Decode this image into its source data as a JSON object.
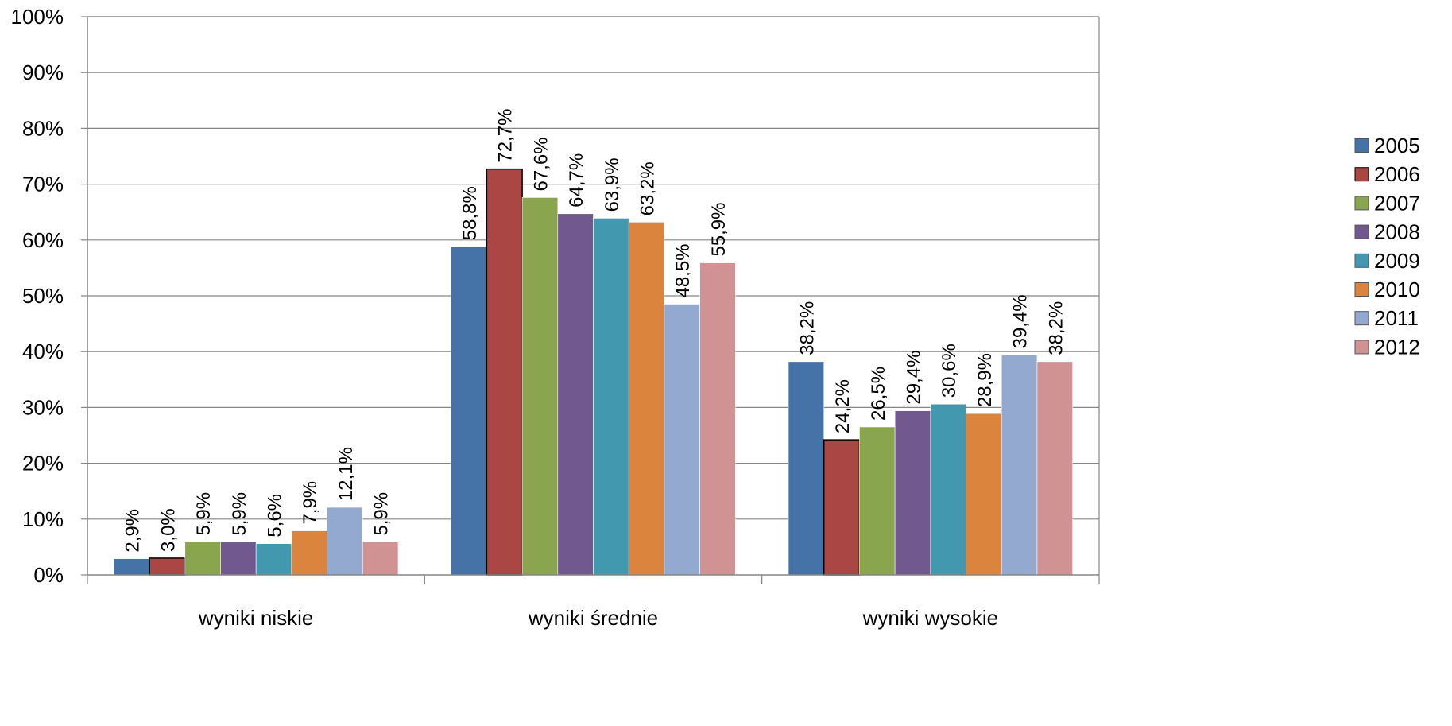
{
  "chart_data": {
    "type": "bar",
    "categories": [
      "wyniki niskie",
      "wyniki średnie",
      "wyniki wysokie"
    ],
    "series": [
      {
        "name": "2005",
        "color": "#4572A7",
        "values": [
          2.9,
          58.8,
          38.2
        ],
        "labels": [
          "2,9%",
          "58,8%",
          "38,2%"
        ]
      },
      {
        "name": "2006",
        "color": "#AA4643",
        "values": [
          3.0,
          72.7,
          24.2
        ],
        "labels": [
          "3,0%",
          "72,7%",
          "24,2%"
        ]
      },
      {
        "name": "2007",
        "color": "#89A54E",
        "values": [
          5.9,
          67.6,
          26.5
        ],
        "labels": [
          "5,9%",
          "67,6%",
          "26,5%"
        ]
      },
      {
        "name": "2008",
        "color": "#71588F",
        "values": [
          5.9,
          64.7,
          29.4
        ],
        "labels": [
          "5,9%",
          "64,7%",
          "29,4%"
        ]
      },
      {
        "name": "2009",
        "color": "#4198AF",
        "values": [
          5.6,
          63.9,
          30.6
        ],
        "labels": [
          "5,6%",
          "63,9%",
          "30,6%"
        ]
      },
      {
        "name": "2010",
        "color": "#DB843D",
        "values": [
          7.9,
          63.2,
          28.9
        ],
        "labels": [
          "7,9%",
          "63,2%",
          "28,9%"
        ]
      },
      {
        "name": "2011",
        "color": "#93A9CF",
        "values": [
          12.1,
          48.5,
          39.4
        ],
        "labels": [
          "12,1%",
          "48,5%",
          "39,4%"
        ]
      },
      {
        "name": "2012",
        "color": "#D09293",
        "values": [
          5.9,
          55.9,
          38.2
        ],
        "labels": [
          "5,9%",
          "55,9%",
          "38,2%"
        ]
      }
    ],
    "yticks": [
      "0%",
      "10%",
      "20%",
      "30%",
      "40%",
      "50%",
      "60%",
      "70%",
      "80%",
      "90%",
      "100%"
    ],
    "ylim": [
      0,
      100
    ],
    "grid": true,
    "legend": "right"
  }
}
